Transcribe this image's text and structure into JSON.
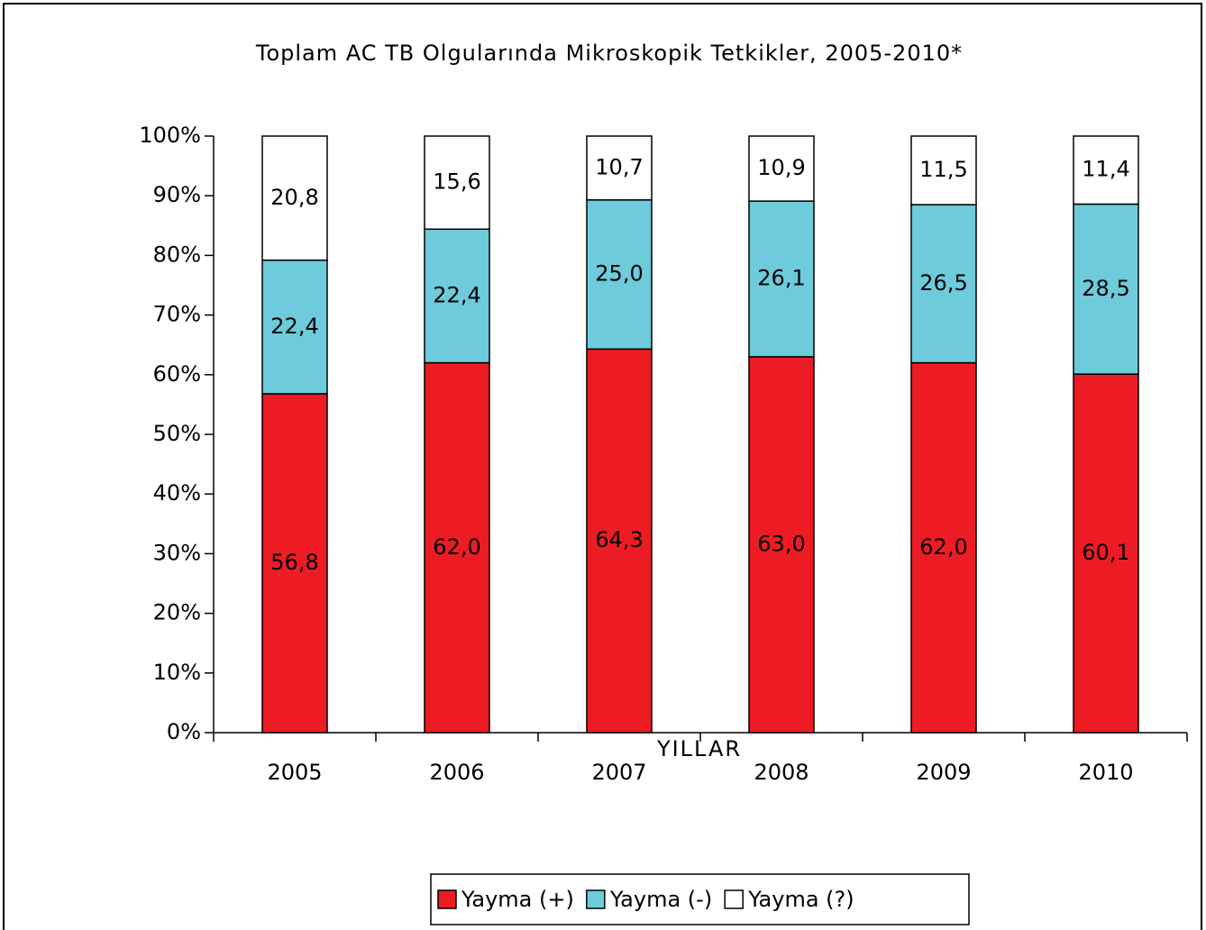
{
  "chart_data": {
    "type": "stacked_bar",
    "title": "Toplam AC TB Olgularında Mikroskopik Tetkikler, 2005-2010*",
    "x_label": "YILLAR",
    "categories": [
      "2005",
      "2006",
      "2007",
      "2008",
      "2009",
      "2010"
    ],
    "series": [
      {
        "name": "Yayma (+)",
        "color": "#ed1c24",
        "values": [
          56.8,
          62.0,
          64.3,
          63.0,
          62.0,
          60.1
        ],
        "value_labels": [
          "56,8",
          "62,0",
          "64,3",
          "63,0",
          "62,0",
          "60,1"
        ]
      },
      {
        "name": "Yayma (-)",
        "color": "#6dcbdb",
        "values": [
          22.4,
          22.4,
          25.0,
          26.1,
          26.5,
          28.5
        ],
        "value_labels": [
          "22,4",
          "22,4",
          "25,0",
          "26,1",
          "26,5",
          "28,5"
        ]
      },
      {
        "name": "Yayma (?)",
        "color": "#ffffff",
        "values": [
          20.8,
          15.6,
          10.7,
          10.9,
          11.5,
          11.4
        ],
        "value_labels": [
          "20,8",
          "15,6",
          "10,7",
          "10,9",
          "11,5",
          "11,4"
        ]
      }
    ],
    "ylim": [
      0,
      100
    ],
    "yticks": [
      {
        "value": 0,
        "label": "0%"
      },
      {
        "value": 10,
        "label": "10%"
      },
      {
        "value": 20,
        "label": "20%"
      },
      {
        "value": 30,
        "label": "30%"
      },
      {
        "value": 40,
        "label": "40%"
      },
      {
        "value": 50,
        "label": "50%"
      },
      {
        "value": 60,
        "label": "60%"
      },
      {
        "value": 70,
        "label": "70%"
      },
      {
        "value": 80,
        "label": "80%"
      },
      {
        "value": 90,
        "label": "90%"
      },
      {
        "value": 100,
        "label": "100%"
      }
    ],
    "legend": "bottom"
  }
}
